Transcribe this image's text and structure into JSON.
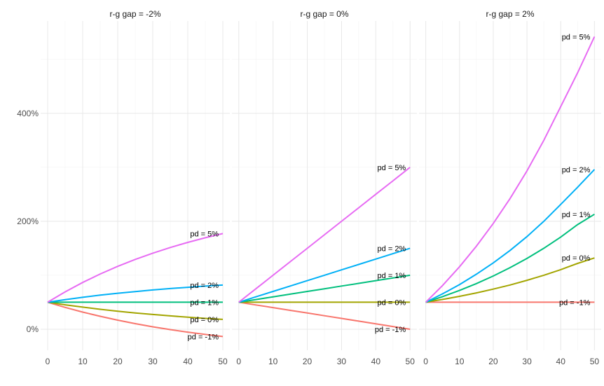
{
  "chart_data": {
    "type": "line",
    "title": "",
    "xlabel": "",
    "ylabel": "",
    "x": [
      0,
      5,
      10,
      15,
      20,
      25,
      30,
      35,
      40,
      45,
      50
    ],
    "xlim": [
      -2,
      52
    ],
    "ylim": [
      -39,
      571
    ],
    "x_ticks": [
      "0",
      "10",
      "20",
      "30",
      "40",
      "50"
    ],
    "x_tick_values": [
      0,
      10,
      20,
      30,
      40,
      50
    ],
    "y_ticks": [
      "0%",
      "200%",
      "400%"
    ],
    "y_tick_values": [
      0,
      200,
      400
    ],
    "grid": true,
    "legend": "none",
    "colors": {
      "pd = -1%": "#F8766D",
      "pd = 0%": "#A3A500",
      "pd = 1%": "#00BF7D",
      "pd = 2%": "#00B0F6",
      "pd = 5%": "#E76BF3"
    },
    "facets": [
      {
        "title": "r-g gap = -2%",
        "series": [
          {
            "name": "pd = -1%",
            "values": [
              50,
              40.4,
              31.7,
              23.9,
              16.8,
              10.3,
              4.5,
              -0.7,
              -5.4,
              -9.7,
              -13.6
            ]
          },
          {
            "name": "pd = 0%",
            "values": [
              50,
              45.2,
              40.9,
              36.9,
              33.4,
              30.2,
              27.3,
              24.7,
              22.3,
              20.1,
              18.2
            ]
          },
          {
            "name": "pd = 1%",
            "values": [
              50,
              50,
              50,
              50,
              50,
              50,
              50,
              50,
              50,
              50,
              50
            ]
          },
          {
            "name": "pd = 2%",
            "values": [
              50,
              54.8,
              59.1,
              63.1,
              66.6,
              69.8,
              72.7,
              75.3,
              77.7,
              79.9,
              81.8
            ]
          },
          {
            "name": "pd = 5%",
            "values": [
              50,
              69.2,
              86.6,
              102.3,
              116.5,
              129.3,
              140.9,
              151.4,
              160.9,
              169.4,
              177.2
            ]
          }
        ]
      },
      {
        "title": "r-g gap = 0%",
        "series": [
          {
            "name": "pd = -1%",
            "values": [
              50,
              45,
              40,
              35,
              30,
              25,
              20,
              15,
              10,
              5,
              0
            ]
          },
          {
            "name": "pd = 0%",
            "values": [
              50,
              50,
              50,
              50,
              50,
              50,
              50,
              50,
              50,
              50,
              50
            ]
          },
          {
            "name": "pd = 1%",
            "values": [
              50,
              55,
              60,
              65,
              70,
              75,
              80,
              85,
              90,
              95,
              100
            ]
          },
          {
            "name": "pd = 2%",
            "values": [
              50,
              60,
              70,
              80,
              90,
              100,
              110,
              120,
              130,
              140,
              150
            ]
          },
          {
            "name": "pd = 5%",
            "values": [
              50,
              75,
              100,
              125,
              150,
              175,
              200,
              225,
              250,
              275,
              300
            ]
          }
        ]
      },
      {
        "title": "r-g gap = 2%",
        "series": [
          {
            "name": "pd = -1%",
            "values": [
              50,
              50,
              50,
              50,
              50,
              50,
              50,
              50,
              50,
              50,
              50
            ]
          },
          {
            "name": "pd = 0%",
            "values": [
              50,
              55.2,
              60.9,
              67.3,
              74.3,
              82.0,
              90.6,
              100.0,
              110.4,
              121.9,
              132.0
            ]
          },
          {
            "name": "pd = 1%",
            "values": [
              50,
              60.4,
              71.9,
              84.6,
              98.6,
              114.1,
              131.1,
              150.0,
              170.8,
              193.8,
              213.0
            ]
          },
          {
            "name": "pd = 2%",
            "values": [
              50,
              65.6,
              82.8,
              101.9,
              122.9,
              146.1,
              171.7,
              200.0,
              231.2,
              263.0,
              296.0
            ]
          },
          {
            "name": "pd = 5%",
            "values": [
              50,
              81.2,
              115.7,
              153.8,
              195.8,
              242.2,
              293.4,
              350.0,
              412.4,
              475.0,
              542.0
            ]
          }
        ]
      }
    ]
  }
}
